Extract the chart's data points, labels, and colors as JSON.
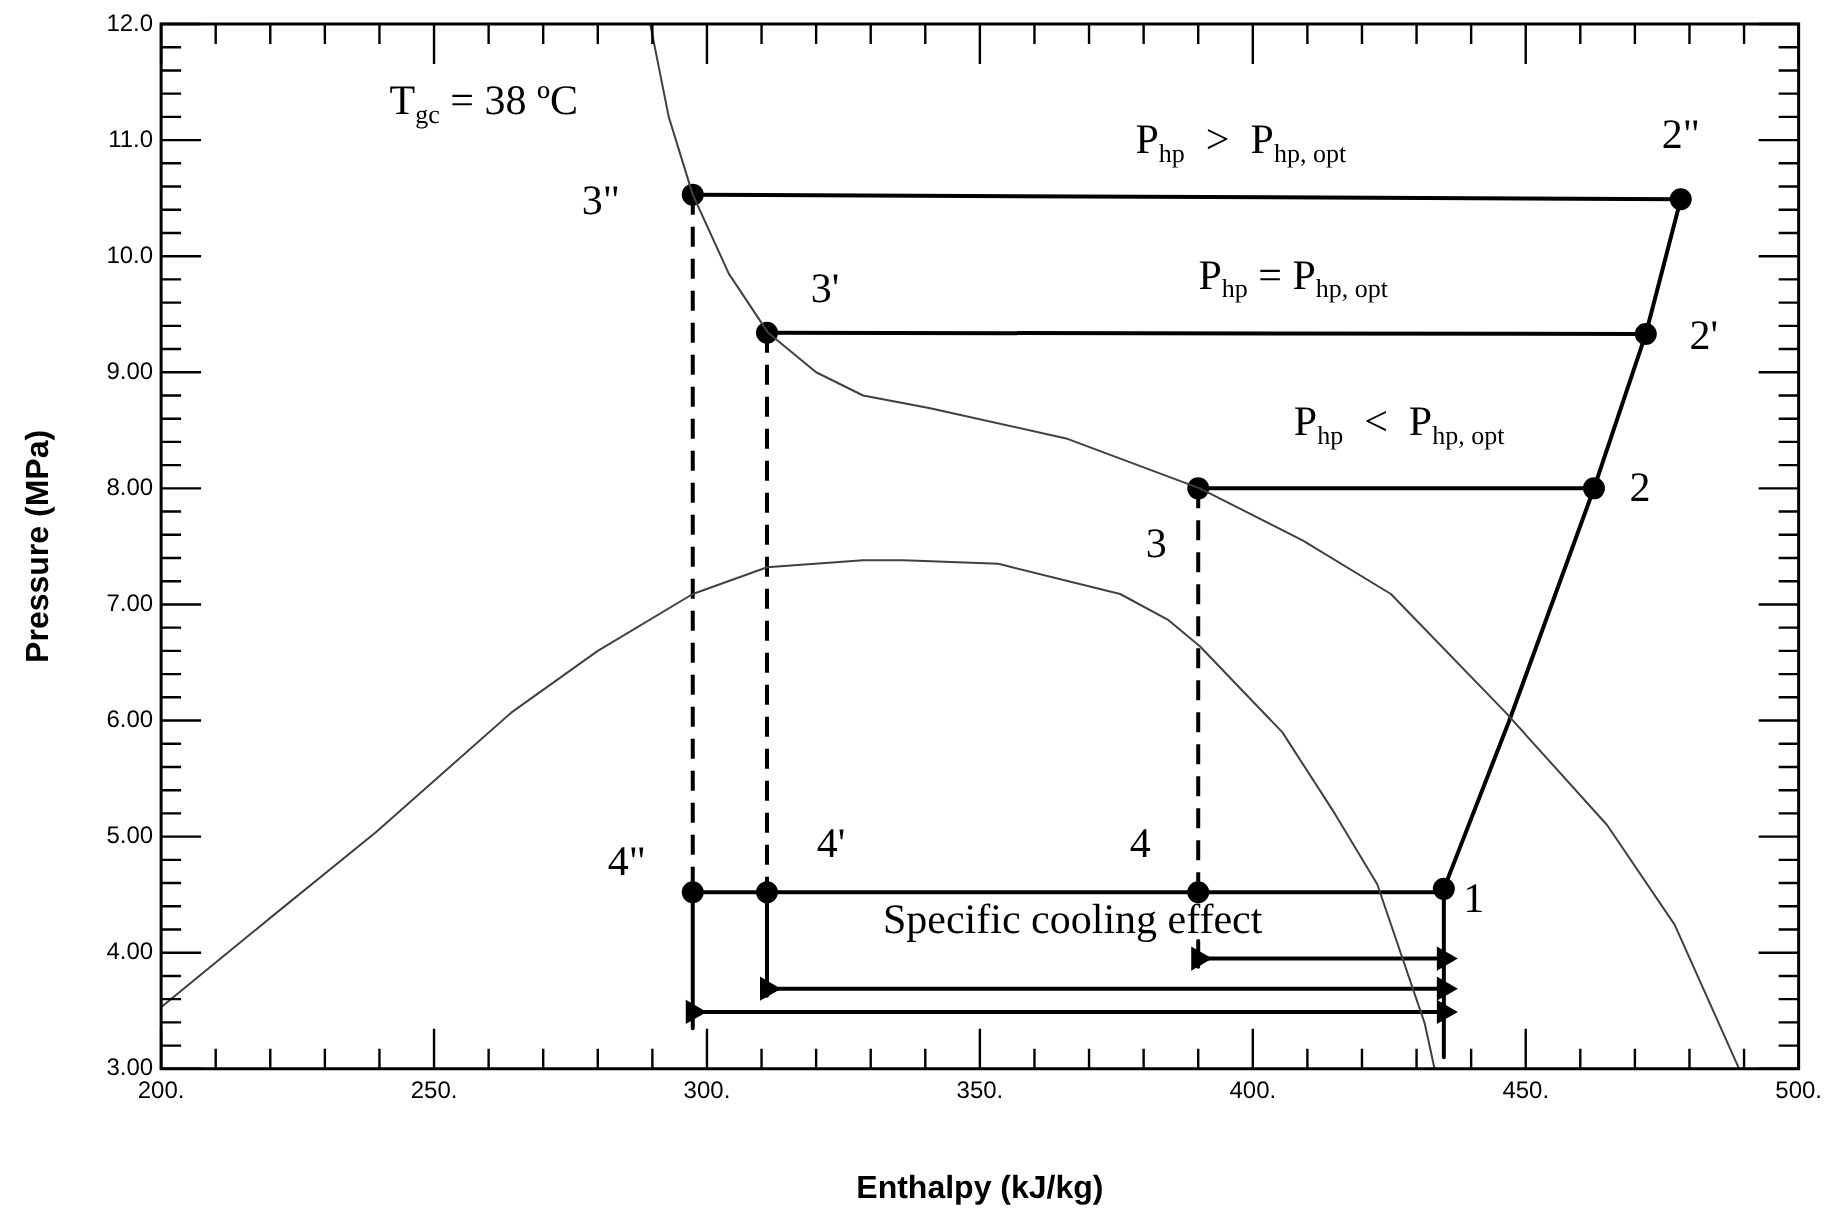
{
  "chart_data": {
    "type": "line",
    "xlabel": "Enthalpy (kJ/kg)",
    "ylabel": "Pressure (MPa)",
    "xlim": [
      200,
      500
    ],
    "ylim": [
      3,
      12
    ],
    "xticks": [
      {
        "value": 200,
        "label": "200."
      },
      {
        "value": 210,
        "label": null
      },
      {
        "value": 220,
        "label": null
      },
      {
        "value": 230,
        "label": null
      },
      {
        "value": 240,
        "label": null
      },
      {
        "value": 250,
        "label": "250."
      },
      {
        "value": 260,
        "label": null
      },
      {
        "value": 270,
        "label": null
      },
      {
        "value": 280,
        "label": null
      },
      {
        "value": 290,
        "label": null
      },
      {
        "value": 300,
        "label": "300."
      },
      {
        "value": 310,
        "label": null
      },
      {
        "value": 320,
        "label": null
      },
      {
        "value": 330,
        "label": null
      },
      {
        "value": 340,
        "label": null
      },
      {
        "value": 350,
        "label": "350."
      },
      {
        "value": 360,
        "label": null
      },
      {
        "value": 370,
        "label": null
      },
      {
        "value": 380,
        "label": null
      },
      {
        "value": 390,
        "label": null
      },
      {
        "value": 400,
        "label": "400."
      },
      {
        "value": 410,
        "label": null
      },
      {
        "value": 420,
        "label": null
      },
      {
        "value": 430,
        "label": null
      },
      {
        "value": 440,
        "label": null
      },
      {
        "value": 450,
        "label": "450."
      },
      {
        "value": 460,
        "label": null
      },
      {
        "value": 470,
        "label": null
      },
      {
        "value": 480,
        "label": null
      },
      {
        "value": 490,
        "label": null
      },
      {
        "value": 500,
        "label": "500."
      }
    ],
    "yticks": [
      {
        "value": 3,
        "label": "3.00"
      },
      {
        "value": 3.2,
        "label": null
      },
      {
        "value": 3.4,
        "label": null
      },
      {
        "value": 3.6,
        "label": null
      },
      {
        "value": 3.8,
        "label": null
      },
      {
        "value": 4,
        "label": "4.00"
      },
      {
        "value": 4.2,
        "label": null
      },
      {
        "value": 4.4,
        "label": null
      },
      {
        "value": 4.6,
        "label": null
      },
      {
        "value": 4.8,
        "label": null
      },
      {
        "value": 5,
        "label": "5.00"
      },
      {
        "value": 5.2,
        "label": null
      },
      {
        "value": 5.4,
        "label": null
      },
      {
        "value": 5.6,
        "label": null
      },
      {
        "value": 5.8,
        "label": null
      },
      {
        "value": 6,
        "label": "6.00"
      },
      {
        "value": 6.2,
        "label": null
      },
      {
        "value": 6.4,
        "label": null
      },
      {
        "value": 6.6,
        "label": null
      },
      {
        "value": 6.8,
        "label": null
      },
      {
        "value": 7,
        "label": "7.00"
      },
      {
        "value": 7.2,
        "label": null
      },
      {
        "value": 7.4,
        "label": null
      },
      {
        "value": 7.6,
        "label": null
      },
      {
        "value": 7.8,
        "label": null
      },
      {
        "value": 8,
        "label": "8.00"
      },
      {
        "value": 8.2,
        "label": null
      },
      {
        "value": 8.4,
        "label": null
      },
      {
        "value": 8.6,
        "label": null
      },
      {
        "value": 8.8,
        "label": null
      },
      {
        "value": 9,
        "label": "9.00"
      },
      {
        "value": 9.2,
        "label": null
      },
      {
        "value": 9.4,
        "label": null
      },
      {
        "value": 9.6,
        "label": null
      },
      {
        "value": 9.8,
        "label": null
      },
      {
        "value": 10,
        "label": "10.0"
      },
      {
        "value": 10.2,
        "label": null
      },
      {
        "value": 10.4,
        "label": null
      },
      {
        "value": 10.6,
        "label": null
      },
      {
        "value": 10.8,
        "label": null
      },
      {
        "value": 11,
        "label": "11.0"
      },
      {
        "value": 11.2,
        "label": null
      },
      {
        "value": 11.4,
        "label": null
      },
      {
        "value": 11.6,
        "label": null
      },
      {
        "value": 11.8,
        "label": null
      },
      {
        "value": 12,
        "label": "12.0"
      }
    ],
    "grid": false,
    "legend": false,
    "series": [
      {
        "color": "#404040",
        "x": [
          200,
          220,
          239.4,
          264.2,
          280,
          297.4,
          311,
          328.6,
          336,
          353.4,
          375.7,
          384.4,
          390.3,
          405.4,
          415,
          422.8,
          431.5,
          433.3
        ],
        "values": [
          3.53,
          4.3,
          5.04,
          6.07,
          6.6,
          7.09,
          7.32,
          7.38,
          7.38,
          7.35,
          7.09,
          6.87,
          6.64,
          5.9,
          5.2,
          4.59,
          3.39,
          3.0
        ]
      },
      {
        "color": "#404040",
        "x": [
          289.6,
          293,
          297.4,
          304,
          311.2,
          320,
          328.6,
          340.9,
          365.8,
          390.3,
          409.2,
          425.3,
          446.3,
          464.9,
          477.3,
          489.1
        ],
        "values": [
          12.0,
          11.2,
          10.53,
          9.85,
          9.34,
          9.0,
          8.8,
          8.69,
          8.43,
          8.0,
          7.55,
          7.09,
          6.07,
          5.1,
          4.24,
          3.0
        ]
      },
      {
        "color": "#000000",
        "x": [
          435,
          447,
          462.5,
          472,
          478.4
        ],
        "values": [
          4.55,
          6.0,
          8.0,
          9.33,
          10.49
        ]
      },
      {
        "color": "#000000",
        "x": [
          297.4,
          478.4
        ],
        "values": [
          10.53,
          10.49
        ]
      },
      {
        "color": "#000000",
        "x": [
          311,
          472
        ],
        "values": [
          9.34,
          9.33
        ]
      },
      {
        "color": "#000000",
        "x": [
          390,
          462.5
        ],
        "values": [
          8.0,
          8.0
        ]
      },
      {
        "color": "#000000",
        "x": [
          297.4,
          435
        ],
        "values": [
          4.52,
          4.52
        ]
      },
      {
        "color": "#000000",
        "line_style": "dashed",
        "x": [
          297.4,
          297.4
        ],
        "values": [
          10.53,
          4.52
        ]
      },
      {
        "color": "#000000",
        "line_style": "dashed",
        "x": [
          311,
          311
        ],
        "values": [
          9.34,
          4.52
        ]
      },
      {
        "color": "#000000",
        "line_style": "dashed",
        "x": [
          390,
          390
        ],
        "values": [
          8.0,
          4.52
        ]
      },
      {
        "color": "#000000",
        "x": [
          297.4,
          297.4
        ],
        "values": [
          4.52,
          3.35
        ]
      },
      {
        "color": "#000000",
        "x": [
          311,
          311
        ],
        "values": [
          4.52,
          3.63
        ]
      },
      {
        "color": "#000000",
        "x": [
          390,
          390
        ],
        "values": [
          4.1,
          3.88
        ]
      },
      {
        "color": "#000000",
        "x": [
          435,
          435
        ],
        "values": [
          4.55,
          3.1
        ]
      },
      {
        "color": "#000000",
        "marker": "triangle",
        "x": [
          390,
          435
        ],
        "values": [
          3.95,
          3.95
        ]
      },
      {
        "color": "#000000",
        "marker": "triangle",
        "x": [
          311,
          435
        ],
        "values": [
          3.69,
          3.69
        ]
      },
      {
        "color": "#000000",
        "marker": "triangle",
        "x": [
          297.4,
          435
        ],
        "values": [
          3.49,
          3.49
        ]
      },
      {
        "type": "scatter",
        "color": "#000000",
        "marker": "circle",
        "x": [
          435,
          462.5,
          472,
          478.4,
          390,
          311,
          297.4,
          390,
          311,
          297.4
        ],
        "values": [
          4.55,
          8.0,
          9.33,
          10.49,
          8.0,
          9.34,
          10.53,
          4.52,
          4.52,
          4.52
        ]
      }
    ],
    "annotations": [
      "T$_{gc}$ = 38 ºC",
      {
        "text": "P$_{hp}$  >  P$_{hp, opt}$",
        "x": 397.8,
        "y": 10.5
      },
      {
        "text": "P$_{hp}$ = P$_{hp, opt}$",
        "x": 407.4,
        "y": 9.33
      },
      {
        "text": "P$_{hp}$  <  P$_{hp, opt}$",
        "x": 426.8,
        "y": 8.0
      },
      {
        "text": "Specific cooling effect",
        "x": 367,
        "y": 4.52
      },
      {
        "text": "1",
        "x": 435,
        "y": 4.55
      },
      {
        "text": "2",
        "x": 462.5,
        "y": 8.0
      },
      {
        "text": "2'",
        "x": 472,
        "y": 9.33
      },
      {
        "text": "2\"",
        "x": 478.4,
        "y": 10.49
      },
      {
        "text": "3",
        "x": 390,
        "y": 8.0
      },
      {
        "text": "3'",
        "x": 311,
        "y": 9.34
      },
      {
        "text": "3\"",
        "x": 297.4,
        "y": 10.53
      },
      {
        "text": "4",
        "x": 390,
        "y": 4.52
      },
      {
        "text": "4'",
        "x": 311,
        "y": 4.52
      },
      {
        "text": "4\"",
        "x": 297.4,
        "y": 4.52
      }
    ]
  }
}
